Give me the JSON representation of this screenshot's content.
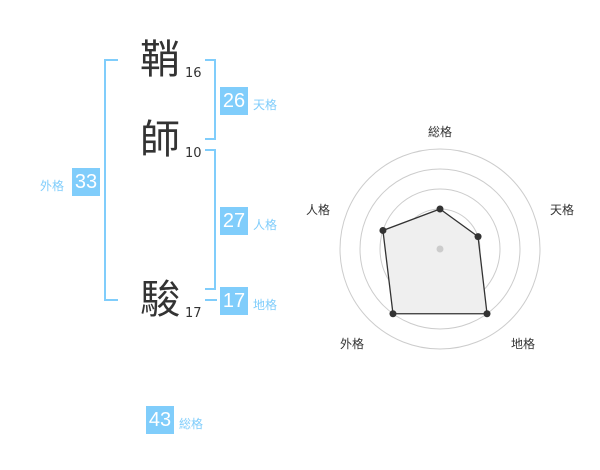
{
  "name": {
    "chars": [
      {
        "char": "鞘",
        "strokes": "16"
      },
      {
        "char": "師",
        "strokes": "10"
      },
      {
        "char": "駿",
        "strokes": "17"
      }
    ]
  },
  "fortunes": {
    "tenkaku": {
      "label": "天格",
      "value": "26"
    },
    "jinkaku": {
      "label": "人格",
      "value": "27"
    },
    "chikaku": {
      "label": "地格",
      "value": "17"
    },
    "gaikaku": {
      "label": "外格",
      "value": "33"
    },
    "soukaku": {
      "label": "総格",
      "value": "43"
    }
  },
  "accent_color": "#80cdfb",
  "chart_data": {
    "type": "radar",
    "axes": [
      "総格",
      "天格",
      "地格",
      "外格",
      "人格"
    ],
    "values": [
      2,
      2,
      4,
      4,
      3
    ],
    "range": [
      0,
      5
    ]
  }
}
